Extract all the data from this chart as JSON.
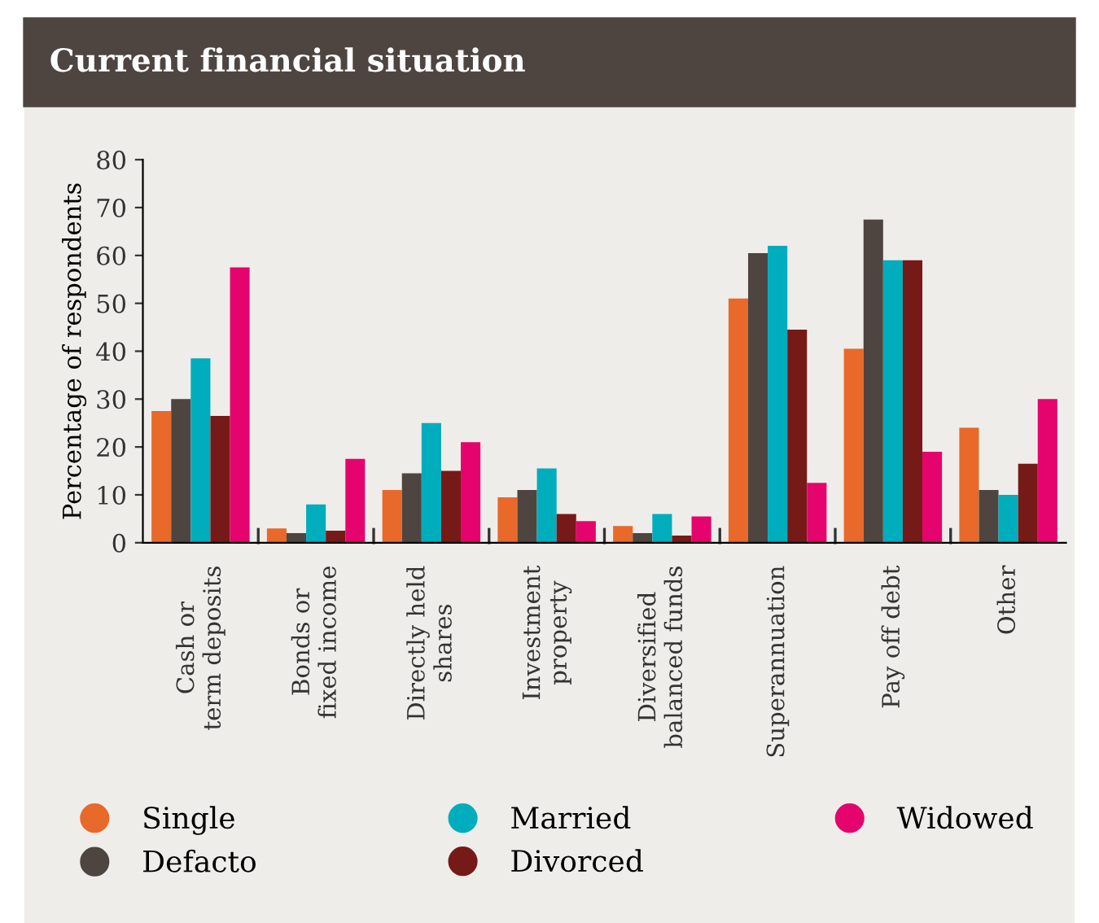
{
  "chart_data": {
    "type": "bar",
    "title": "Current financial situation",
    "ylabel": "Percentage of respondents",
    "categories": [
      "Cash or\nterm deposits",
      "Bonds or\nfixed income",
      "Directly held\nshares",
      "Investment\nproperty",
      "Diversified\nbalanced funds",
      "Superannuation",
      "Pay off debt",
      "Other"
    ],
    "series": [
      {
        "name": "Single",
        "color": "#e8692a",
        "values": [
          27.5,
          3,
          11,
          9.5,
          3.5,
          51,
          40.5,
          24
        ]
      },
      {
        "name": "Defacto",
        "color": "#4e4540",
        "values": [
          30,
          2,
          14.5,
          11,
          2,
          60.5,
          67.5,
          11
        ]
      },
      {
        "name": "Married",
        "color": "#00adbd",
        "values": [
          38.5,
          8,
          25,
          15.5,
          6,
          62,
          59,
          10
        ]
      },
      {
        "name": "Divorced",
        "color": "#761a17",
        "values": [
          26.5,
          2.5,
          15,
          6,
          1.5,
          44.5,
          59,
          16.5
        ]
      },
      {
        "name": "Widowed",
        "color": "#e5046e",
        "values": [
          57.5,
          17.5,
          21,
          4.5,
          5.5,
          12.5,
          19,
          30
        ]
      }
    ],
    "ylim": [
      0,
      80
    ],
    "yticks": [
      0,
      10,
      20,
      30,
      40,
      50,
      60,
      70,
      80
    ],
    "grid": false,
    "legend": "bottom"
  }
}
